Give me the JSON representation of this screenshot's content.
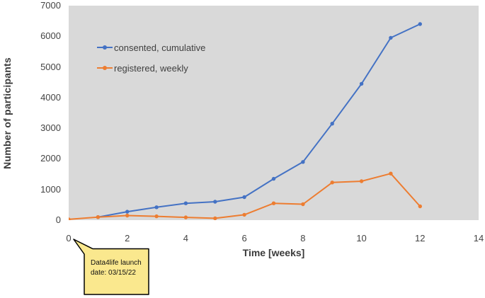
{
  "chart_data": {
    "type": "line",
    "title": "",
    "xlabel": "Time [weeks]",
    "ylabel": "Number of participants",
    "xlim": [
      0,
      14
    ],
    "ylim": [
      0,
      7000
    ],
    "x_ticks": [
      0,
      2,
      4,
      6,
      8,
      10,
      12,
      14
    ],
    "y_ticks": [
      0,
      1000,
      2000,
      3000,
      4000,
      5000,
      6000,
      7000
    ],
    "grid": false,
    "plot_background": "#D9D9D9",
    "legend_position": "top-left-inside",
    "series": [
      {
        "name": "consented, cumulative",
        "color": "#4472C4",
        "x": [
          1,
          2,
          3,
          4,
          5,
          6,
          7,
          8,
          9,
          10,
          11,
          12
        ],
        "values": [
          100,
          275,
          420,
          550,
          600,
          750,
          1350,
          1900,
          3150,
          4450,
          5950,
          6400
        ]
      },
      {
        "name": "registered, weekly",
        "color": "#ED7D31",
        "x": [
          0,
          1,
          2,
          3,
          4,
          5,
          6,
          7,
          8,
          9,
          10,
          11,
          12
        ],
        "values": [
          25,
          100,
          150,
          125,
          90,
          60,
          175,
          550,
          520,
          1230,
          1270,
          1520,
          450
        ]
      }
    ]
  },
  "annotation": {
    "line1": "Data4life launch",
    "line2": "date: 03/15/22",
    "fill": "#FAE88E",
    "border": "#000000"
  },
  "colors": {
    "text": "#444444",
    "axis_title": "#3A3A3A"
  }
}
